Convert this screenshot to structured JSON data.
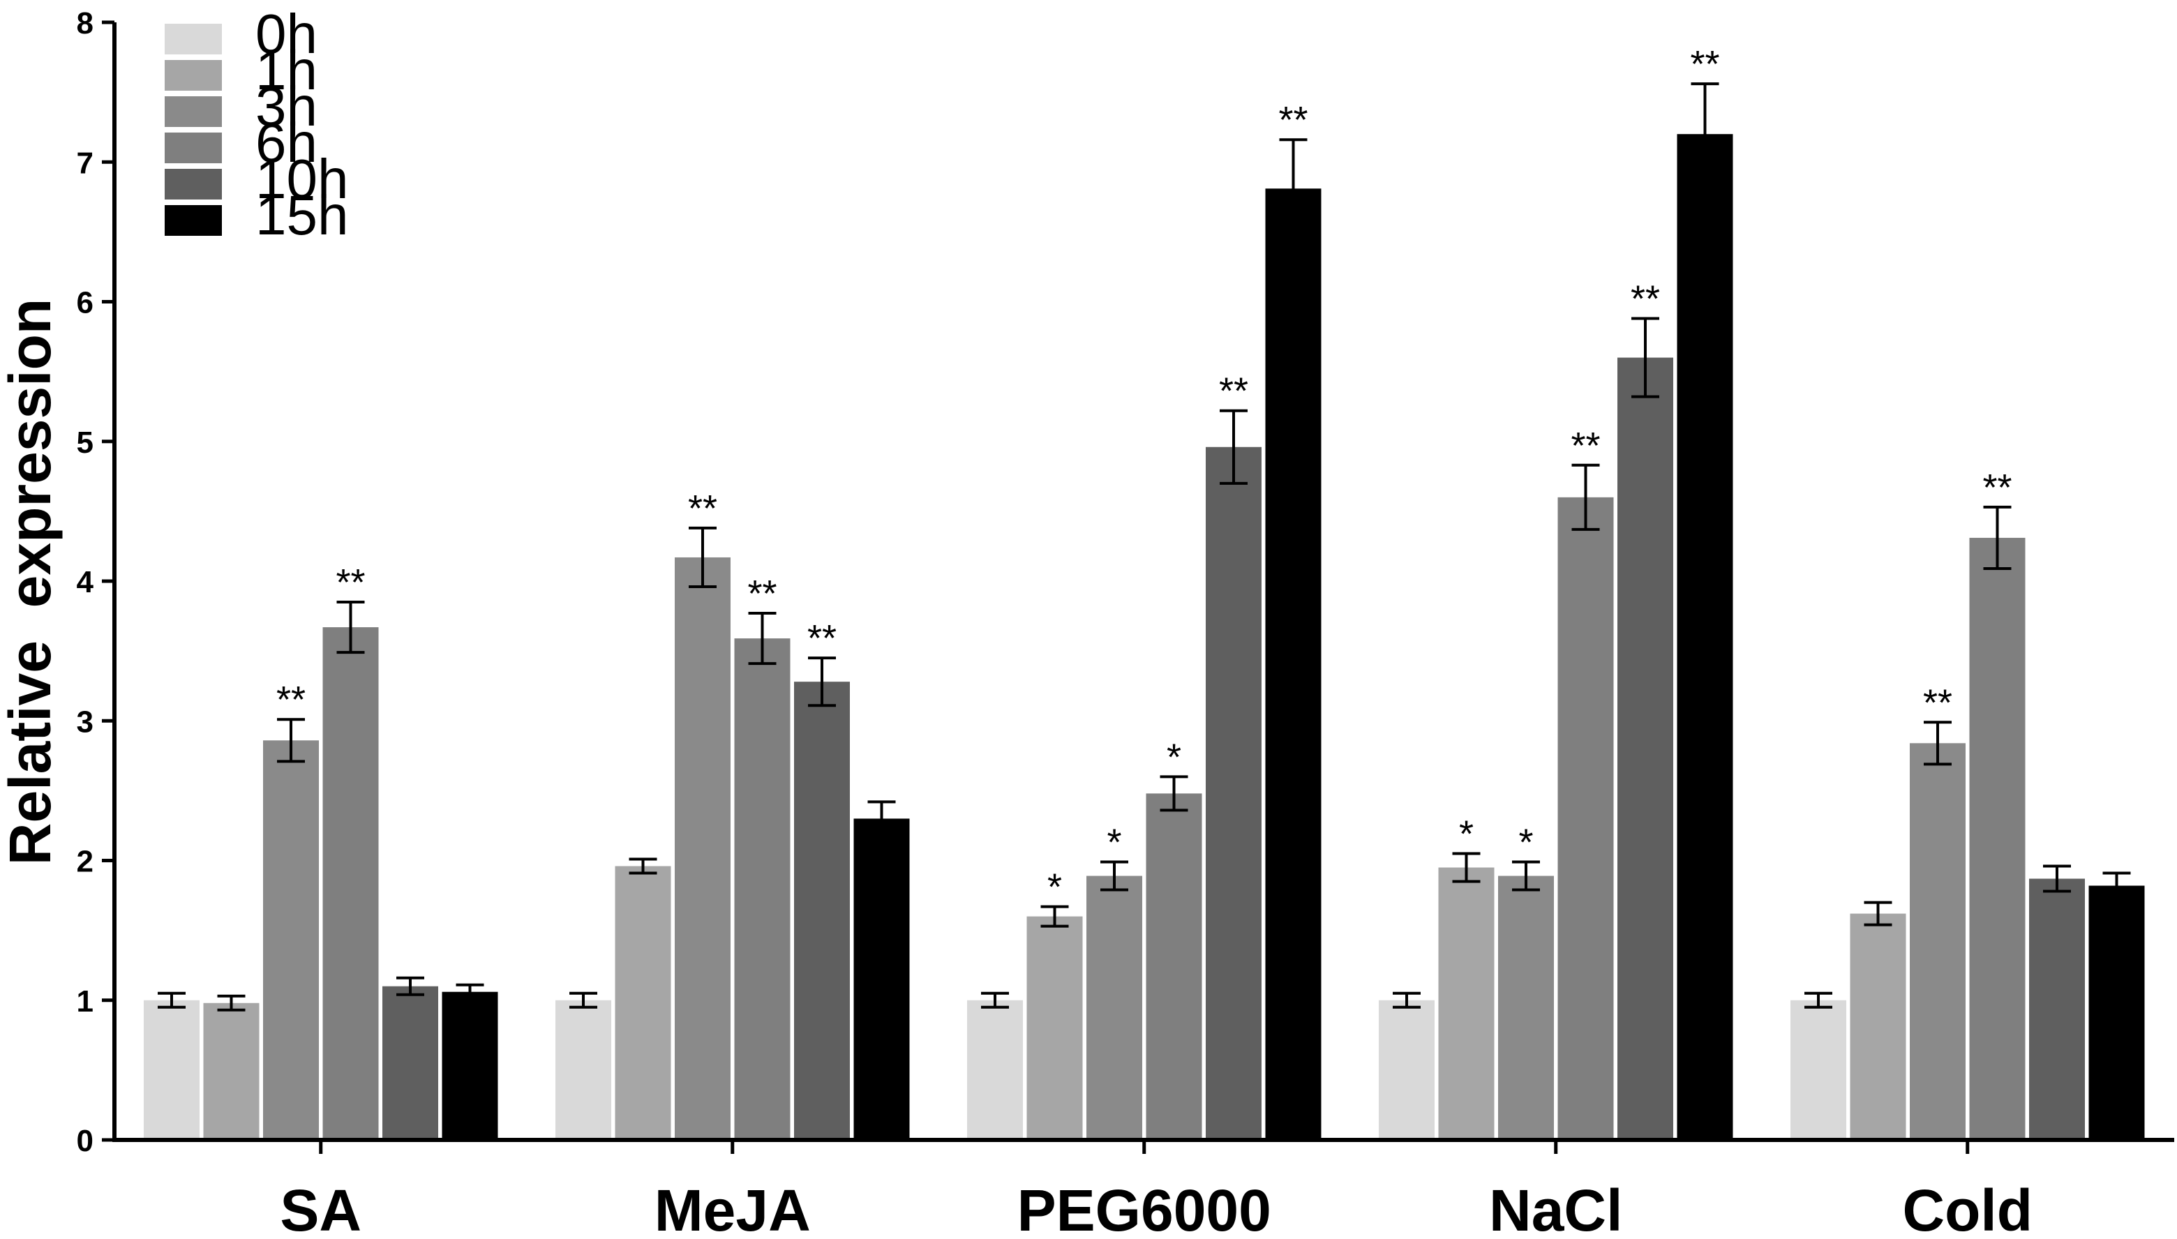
{
  "chart_data": {
    "type": "bar",
    "title": "",
    "xlabel": "",
    "ylabel": "Relative  expression",
    "ylim": [
      0,
      8
    ],
    "yticks": [
      0,
      1,
      2,
      3,
      4,
      5,
      6,
      7,
      8
    ],
    "grid": false,
    "legend": "top-left",
    "categories": [
      "SA",
      "MeJA",
      "PEG6000",
      "NaCl",
      "Cold"
    ],
    "series": [
      {
        "name": "0h",
        "color": "#d9d9d9",
        "values": [
          1.0,
          1.0,
          1.0,
          1.0,
          1.0
        ],
        "errors": [
          0.05,
          0.05,
          0.05,
          0.05,
          0.05
        ],
        "sig": [
          "",
          "",
          "",
          "",
          ""
        ]
      },
      {
        "name": "1h",
        "color": "#a6a6a6",
        "values": [
          0.98,
          1.96,
          1.6,
          1.95,
          1.62
        ],
        "errors": [
          0.05,
          0.05,
          0.07,
          0.1,
          0.08
        ],
        "sig": [
          "",
          "",
          "*",
          "*",
          ""
        ]
      },
      {
        "name": "3h",
        "color": "#8a8a8a",
        "values": [
          2.86,
          4.17,
          1.89,
          1.89,
          2.84
        ],
        "errors": [
          0.15,
          0.21,
          0.1,
          0.1,
          0.15
        ],
        "sig": [
          "**",
          "**",
          "*",
          "*",
          "**"
        ]
      },
      {
        "name": "6h",
        "color": "#7f7f7f",
        "values": [
          3.67,
          3.59,
          2.48,
          4.6,
          4.31
        ],
        "errors": [
          0.18,
          0.18,
          0.12,
          0.23,
          0.22
        ],
        "sig": [
          "**",
          "**",
          "*",
          "**",
          "**"
        ]
      },
      {
        "name": "10h",
        "color": "#5f5f5f",
        "values": [
          1.1,
          3.28,
          4.96,
          5.6,
          1.87
        ],
        "errors": [
          0.06,
          0.17,
          0.26,
          0.28,
          0.09
        ],
        "sig": [
          "",
          "**",
          "**",
          "**",
          ""
        ]
      },
      {
        "name": "15h",
        "color": "#000000",
        "values": [
          1.06,
          2.3,
          6.81,
          7.2,
          1.82
        ],
        "errors": [
          0.05,
          0.12,
          0.35,
          0.36,
          0.09
        ],
        "sig": [
          "",
          "",
          "**",
          "**",
          ""
        ]
      }
    ]
  }
}
